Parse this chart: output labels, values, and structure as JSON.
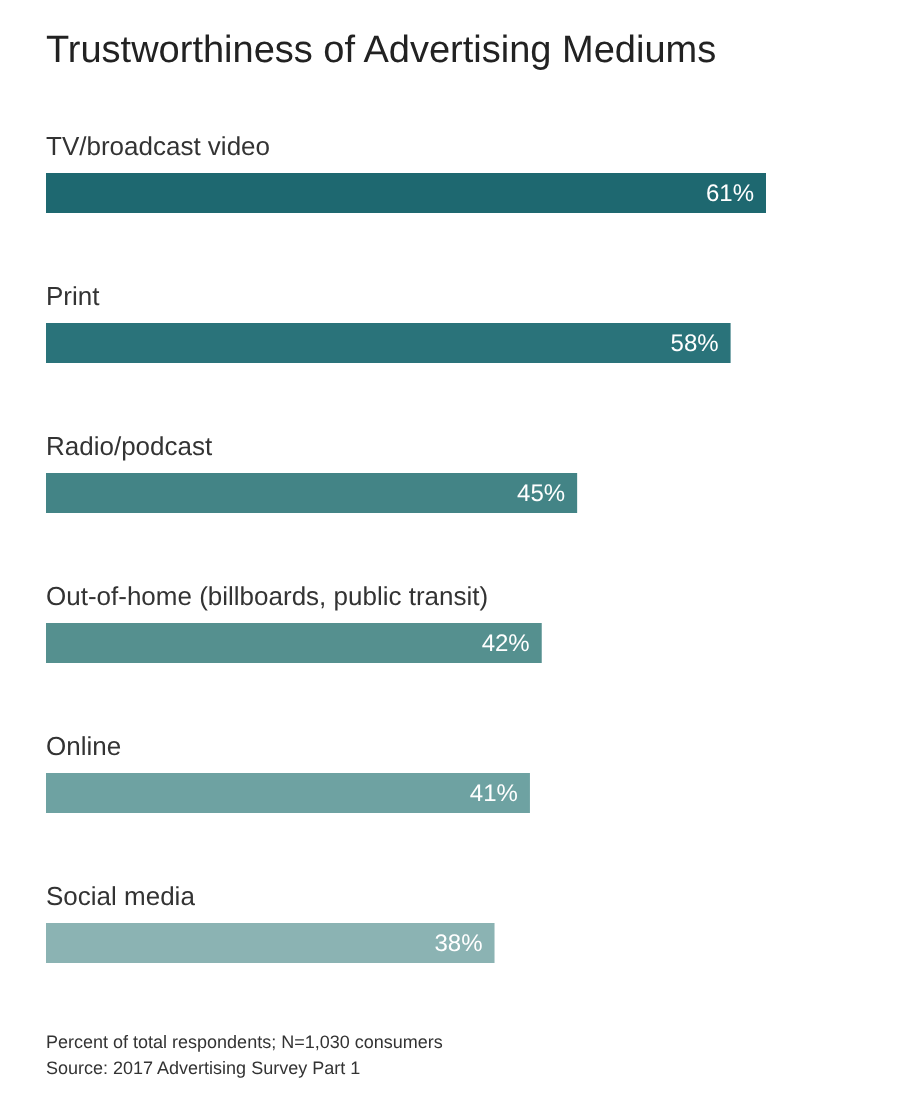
{
  "chart_data": {
    "type": "bar",
    "orientation": "horizontal",
    "title": "Trustworthiness of Advertising Mediums",
    "categories": [
      "TV/broadcast video",
      "Print",
      "Radio/podcast",
      "Out-of-home (billboards, public transit)",
      "Online",
      "Social media"
    ],
    "values": [
      61,
      58,
      45,
      42,
      41,
      38
    ],
    "colors": [
      "#1e6870",
      "#2a737a",
      "#438486",
      "#55908f",
      "#6ea2a2",
      "#8bb3b3"
    ],
    "value_labels": [
      "61%",
      "58%",
      "45%",
      "42%",
      "41%",
      "38%"
    ],
    "annotations": [
      "Percent of total respondents; N=1,030 consumers",
      "Source: 2017 Advertising Survey Part 1"
    ]
  }
}
